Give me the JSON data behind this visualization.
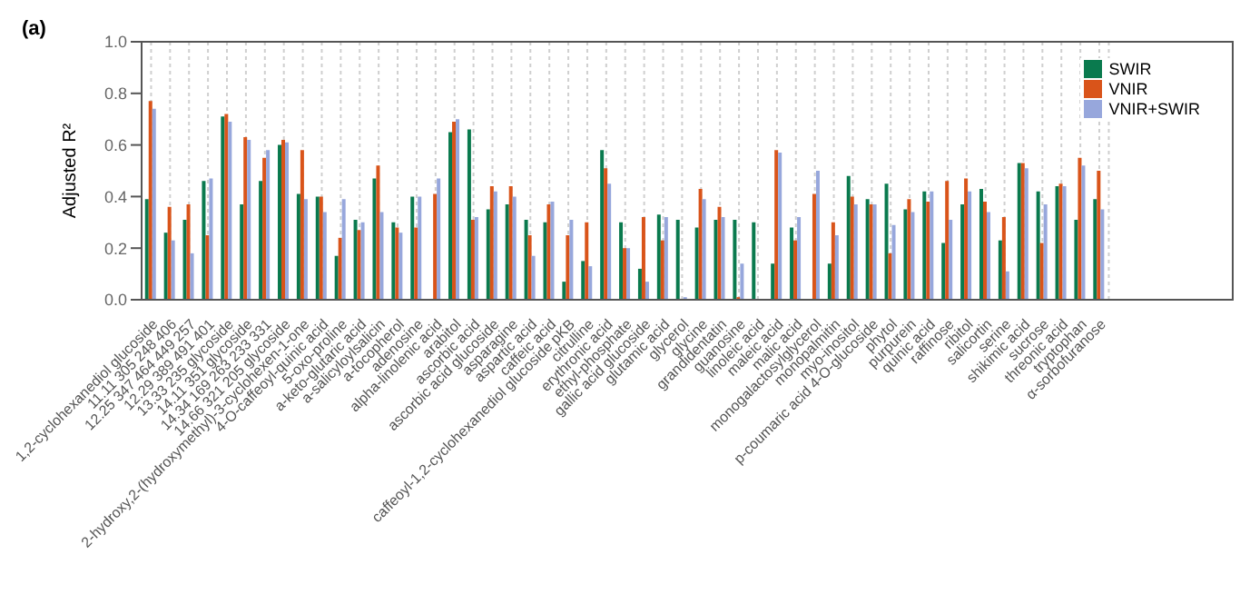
{
  "chart_data": {
    "type": "bar",
    "title": "(a)",
    "ylabel": "Adjusted R²",
    "categories": [
      "1,2-cyclohexanediol glucoside",
      "11.11 305 248 406",
      "12.25 347 464 449 257",
      "12.29 389 491 401",
      "13.33 235 glycoside",
      "14.11 351 glycoside",
      "14.34 169 263 233 331",
      "14.66 321 205 glycoside",
      "2-hydroxy,2-(hydroxymethyl)-3-cyclohexen-1-one",
      "4-O-caffeoyl-quinic acid",
      "5-oxo-proline",
      "a-keto-glutaric acid",
      "a-salicyloylsalicin",
      "a-tocopherol",
      "adenosine",
      "alpha-linolenic acid",
      "arabitol",
      "ascorbic acid",
      "ascorbic acid glucoside",
      "asparagine",
      "aspartic acid",
      "caffeic acid",
      "caffeoyl-1,2-cyclohexanediol glucoside pKB",
      "citrulline",
      "erythronic acid",
      "ethyl-phosphate",
      "gallic acid glucoside",
      "glutamic acid",
      "glycerol",
      "glycine",
      "grandidentatin",
      "guanosine",
      "linoleic acid",
      "maleic acid",
      "malic acid",
      "monogalactosylglycerol",
      "monopalmitin",
      "myo-inositol",
      "p-coumaric acid 4-O-glucoside",
      "phytol",
      "purpurein",
      "quinic acid",
      "raffinose",
      "ribitol",
      "salicortin",
      "serine",
      "shikimic acid",
      "sucrose",
      "threonic acid",
      "tryptophan",
      "α-sorbofuranose"
    ],
    "series": [
      {
        "name": "SWIR",
        "color": "#0a7a4e",
        "values": [
          0.39,
          0.26,
          0.31,
          0.46,
          0.71,
          0.37,
          0.46,
          0.6,
          0.41,
          0.4,
          0.17,
          0.31,
          0.47,
          0.3,
          0.4,
          null,
          0.65,
          0.66,
          0.35,
          0.37,
          0.31,
          0.3,
          0.07,
          0.15,
          0.58,
          0.3,
          0.12,
          0.33,
          0.31,
          0.28,
          0.31,
          0.31,
          0.3,
          0.14,
          0.28,
          null,
          0.14,
          0.48,
          0.39,
          0.45,
          0.35,
          0.42,
          0.22,
          0.37,
          0.43,
          0.23,
          0.53,
          0.42,
          0.44,
          0.31,
          0.39
        ]
      },
      {
        "name": "VNIR",
        "color": "#d9541a",
        "values": [
          0.77,
          0.36,
          0.37,
          0.25,
          0.72,
          0.63,
          0.55,
          0.62,
          0.58,
          0.4,
          0.24,
          0.27,
          0.52,
          0.28,
          0.28,
          0.41,
          0.69,
          0.31,
          0.44,
          0.44,
          0.25,
          0.37,
          0.25,
          0.3,
          0.51,
          0.2,
          0.32,
          0.23,
          null,
          0.43,
          0.36,
          0.01,
          null,
          0.58,
          0.23,
          0.41,
          0.3,
          0.4,
          0.37,
          0.18,
          0.39,
          0.38,
          0.46,
          0.47,
          0.38,
          0.32,
          0.53,
          0.22,
          0.45,
          0.55,
          0.5
        ]
      },
      {
        "name": "VNIR+SWIR",
        "color": "#97a7dc",
        "values": [
          0.74,
          0.23,
          0.18,
          0.47,
          0.69,
          0.62,
          0.58,
          0.61,
          0.39,
          0.34,
          0.39,
          0.3,
          0.34,
          0.26,
          0.4,
          0.47,
          0.7,
          0.32,
          0.42,
          0.4,
          0.17,
          0.38,
          0.31,
          0.13,
          0.45,
          0.2,
          0.07,
          0.32,
          0.01,
          0.39,
          0.32,
          0.14,
          null,
          0.57,
          0.32,
          0.5,
          0.25,
          0.37,
          0.37,
          0.29,
          0.34,
          0.42,
          0.31,
          0.42,
          0.34,
          0.11,
          0.51,
          0.37,
          0.44,
          0.52,
          0.35
        ]
      }
    ],
    "ylim": [
      0,
      1
    ],
    "yticks": [
      {
        "value": 0,
        "label": "0.0"
      },
      {
        "value": 0.2,
        "label": "0.2"
      },
      {
        "value": 0.4,
        "label": "0.4"
      },
      {
        "value": 0.6,
        "label": "0.6"
      },
      {
        "value": 0.8,
        "label": "0.8"
      },
      {
        "value": 1,
        "label": "1.0"
      }
    ],
    "grid": "x",
    "legend": "top right"
  }
}
